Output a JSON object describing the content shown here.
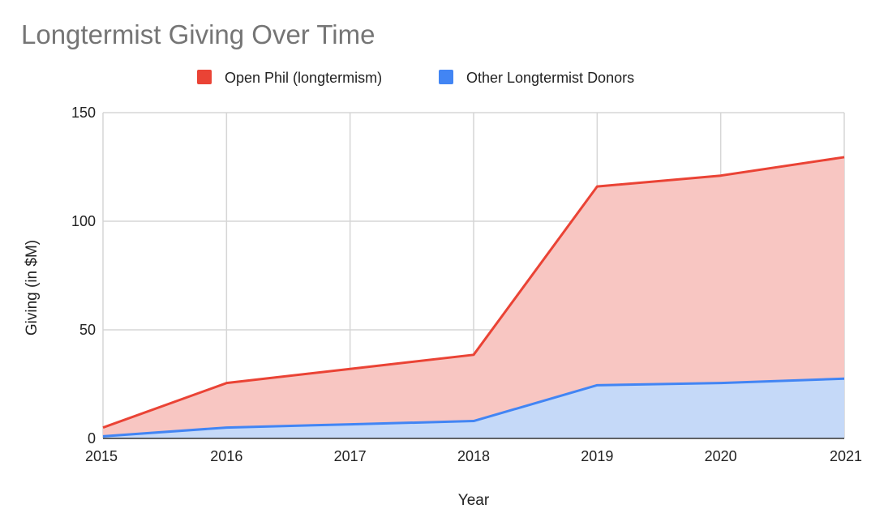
{
  "chart_data": {
    "type": "area",
    "stacked": true,
    "title": "Longtermist Giving Over Time",
    "xlabel": "Year",
    "ylabel": "Giving (in $M)",
    "x": [
      "2015",
      "2016",
      "2017",
      "2018",
      "2019",
      "2020",
      "2021"
    ],
    "ylim": [
      0,
      150
    ],
    "yticks": [
      "0",
      "50",
      "100",
      "150"
    ],
    "grid": true,
    "legend_position": "top",
    "series": [
      {
        "name": "Other Longtermist Donors",
        "values": [
          1,
          5,
          6.5,
          8,
          24.5,
          25.5,
          27.5
        ],
        "line_color": "#4285f4",
        "fill_color": "#c5d9f8"
      },
      {
        "name": "Open Phil (longtermism)",
        "values": [
          4,
          20.5,
          25.5,
          30.5,
          91.5,
          95.5,
          102
        ],
        "line_color": "#ea4335",
        "fill_color": "#f8c6c2"
      }
    ],
    "legend": [
      {
        "label": "Open Phil (longtermism)",
        "color": "#ea4335"
      },
      {
        "label": "Other Longtermist Donors",
        "color": "#4285f4"
      }
    ]
  }
}
